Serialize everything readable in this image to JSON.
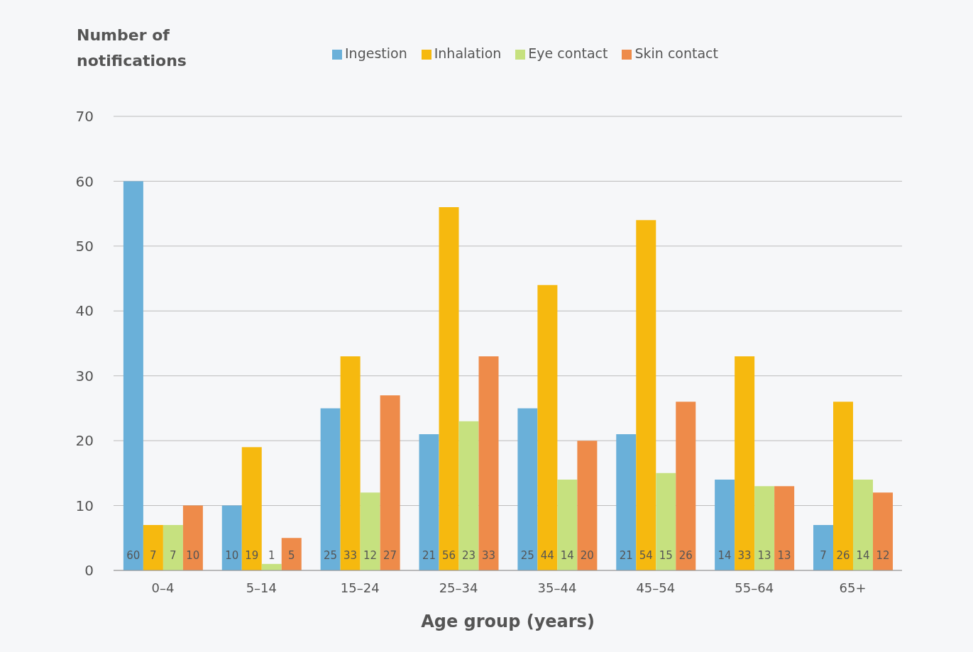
{
  "chart_data": {
    "type": "bar",
    "xlabel": "Age group (years)",
    "ylabel": "Number of notifications",
    "categories": [
      "0–4",
      "5–14",
      "15–24",
      "25–34",
      "35–44",
      "45–54",
      "55–64",
      "65+"
    ],
    "series": [
      {
        "name": "Ingestion",
        "color": "#6ab0d9",
        "values": [
          60,
          10,
          25,
          21,
          25,
          21,
          14,
          7
        ]
      },
      {
        "name": "Inhalation",
        "color": "#f6b90f",
        "values": [
          7,
          19,
          33,
          56,
          44,
          54,
          33,
          26
        ]
      },
      {
        "name": "Eye contact",
        "color": "#c6e17f",
        "values": [
          7,
          1,
          12,
          23,
          14,
          15,
          13,
          14
        ]
      },
      {
        "name": "Skin contact",
        "color": "#ee8b4a",
        "values": [
          10,
          5,
          27,
          33,
          20,
          26,
          13,
          12
        ]
      }
    ],
    "ylim": [
      0,
      70
    ],
    "yticks": [
      0,
      10,
      20,
      30,
      40,
      50,
      60,
      70
    ],
    "grid": "y",
    "legend": "top",
    "data_labels": true
  }
}
